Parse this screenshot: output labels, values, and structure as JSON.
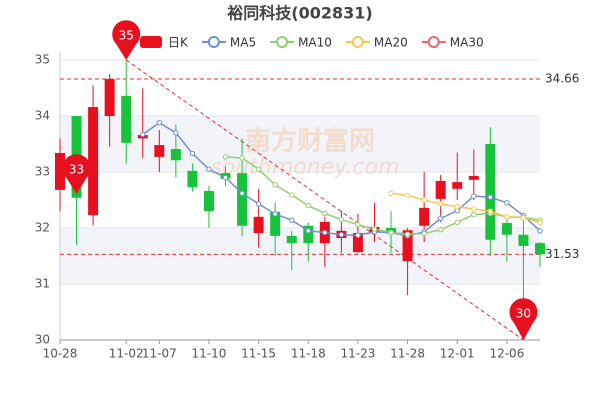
{
  "chart_data": {
    "type": "candlestick",
    "title": "裕同科技(002831)",
    "watermark": [
      "南方财富网",
      "southmoney.com"
    ],
    "categories": [
      "10-28",
      null,
      null,
      null,
      "11-02",
      null,
      "11-07",
      null,
      null,
      "11-10",
      null,
      null,
      "11-15",
      null,
      null,
      "11-18",
      null,
      null,
      "11-23",
      null,
      null,
      "11-28",
      null,
      null,
      "12-01",
      null,
      null,
      "12-06",
      null,
      null
    ],
    "series": [
      {
        "name": "日K",
        "up_color": "#e8101e",
        "down_color": "#18c23a",
        "open": [
          32.68,
          34.0,
          32.23,
          34.0,
          34.36,
          33.6,
          33.27,
          33.41,
          33.02,
          32.66,
          32.98,
          32.98,
          31.91,
          32.29,
          31.86,
          32.04,
          31.73,
          31.82,
          31.57,
          31.93,
          32.0,
          31.41,
          32.04,
          32.52,
          32.7,
          32.86,
          33.5,
          32.09,
          31.88,
          31.73
        ],
        "high": [
          33.6,
          34.0,
          34.55,
          34.75,
          35,
          34.5,
          33.75,
          33.85,
          33.15,
          32.75,
          33.1,
          33.6,
          32.7,
          32.45,
          31.95,
          32.1,
          32.2,
          32.3,
          32.25,
          32.45,
          32.3,
          32.0,
          33.0,
          32.95,
          33.35,
          33.4,
          33.8,
          32.2,
          32.2,
          31.75
        ],
        "low": [
          32.3,
          31.7,
          32.05,
          33.45,
          33.15,
          33.25,
          33.0,
          32.9,
          32.65,
          32.0,
          32.75,
          31.85,
          31.65,
          31.5,
          31.25,
          31.4,
          31.3,
          31.55,
          31.55,
          31.75,
          31.55,
          30.8,
          31.75,
          32.1,
          32.5,
          32.5,
          31.5,
          31.4,
          30,
          31.3
        ],
        "close": [
          33.34,
          32.54,
          34.16,
          34.66,
          33.52,
          33.66,
          33.48,
          33.21,
          32.73,
          32.3,
          32.88,
          32.04,
          32.2,
          31.86,
          31.73,
          31.73,
          32.11,
          31.95,
          31.91,
          32.02,
          31.9,
          31.96,
          32.36,
          32.84,
          32.82,
          32.93,
          31.79,
          31.88,
          31.68,
          31.53
        ]
      },
      {
        "name": "MA5",
        "color": "#6f8fd0",
        "values": [
          null,
          null,
          null,
          null,
          null,
          33.67,
          33.88,
          33.7,
          33.33,
          33.05,
          32.9,
          32.62,
          32.43,
          32.25,
          32.14,
          31.95,
          31.92,
          31.88,
          31.87,
          31.93,
          31.92,
          31.86,
          31.93,
          32.17,
          32.31,
          32.57,
          32.55,
          32.45,
          32.22,
          31.95
        ]
      },
      {
        "name": "MA10",
        "color": "#93cf6e",
        "values": [
          null,
          null,
          null,
          null,
          null,
          null,
          null,
          null,
          null,
          null,
          33.27,
          33.25,
          33.05,
          32.77,
          32.59,
          32.4,
          32.26,
          32.15,
          32.06,
          31.98,
          31.92,
          31.89,
          31.9,
          31.97,
          32.1,
          32.24,
          32.26,
          32.2,
          32.19,
          32.14
        ]
      },
      {
        "name": "MA20",
        "color": "#f5c74f",
        "values": [
          null,
          null,
          null,
          null,
          null,
          null,
          null,
          null,
          null,
          null,
          null,
          null,
          null,
          null,
          null,
          null,
          null,
          null,
          null,
          null,
          32.62,
          32.58,
          32.5,
          32.43,
          32.38,
          32.34,
          32.3,
          32.2,
          32.18,
          32.1
        ]
      },
      {
        "name": "MA30",
        "color": "#e9696f",
        "values": [
          null,
          null,
          null,
          null,
          null,
          null,
          null,
          null,
          null,
          null,
          null,
          null,
          null,
          null,
          null,
          null,
          null,
          null,
          null,
          null,
          null,
          null,
          null,
          null,
          null,
          null,
          null,
          null,
          null,
          null
        ]
      }
    ],
    "ylim": [
      30,
      35
    ],
    "yticks": [
      30,
      31,
      32,
      33,
      34,
      35
    ],
    "grid": true,
    "hlines": [
      34.66,
      31.53
    ],
    "pins": [
      {
        "value": 35,
        "at": 4
      },
      {
        "value": 33,
        "at": 1
      },
      {
        "value": 30,
        "at": 28
      }
    ],
    "legend": "top"
  }
}
